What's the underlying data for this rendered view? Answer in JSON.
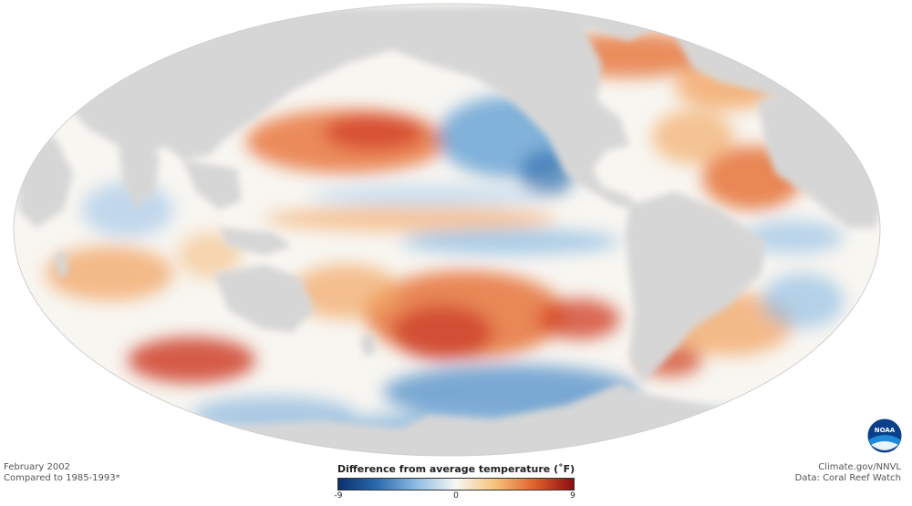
{
  "map": {
    "projection": "mollweide",
    "ocean_anomaly": "sea surface temperature difference from average",
    "land_color": "#d6d6d6",
    "ocean_base_color": "#f8f6f1"
  },
  "caption_left": {
    "date": "February 2002",
    "baseline": "Compared to 1985-1993*"
  },
  "caption_right": {
    "credit": "Climate.gov/NNVL",
    "source": "Data: Coral Reef Watch"
  },
  "legend": {
    "title": "Difference from average temperature (˚F)",
    "min_label": "-9",
    "mid_label": "0",
    "max_label": "9",
    "range": [
      -9,
      9
    ],
    "colors": [
      "#0a2f6b",
      "#2b6cb0",
      "#8fbde3",
      "#f7f7f2",
      "#f6c27a",
      "#e0612b",
      "#8a0d12"
    ]
  },
  "logo": {
    "icon": "noaa-logo-icon",
    "text": "NOAA"
  }
}
